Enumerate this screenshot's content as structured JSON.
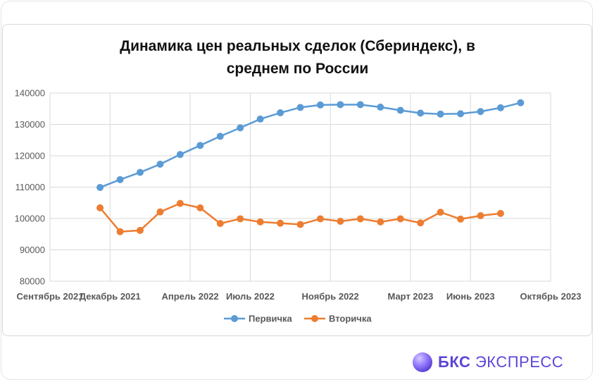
{
  "chart_data": {
    "type": "line",
    "title_line1": "Динамика цен реальных сделок (Сбериндекс), в",
    "title_line2": "среднем по России",
    "yticks": [
      80000,
      90000,
      100000,
      110000,
      120000,
      130000,
      140000
    ],
    "ylim": [
      80000,
      140000
    ],
    "xticks": [
      "Сентябрь 2021",
      "Декабрь 2021",
      "Апрель 2022",
      "Июль 2022",
      "Ноябрь 2022",
      "Март 2023",
      "Июнь 2023",
      "Октябрь 2023"
    ],
    "x": [
      "2021-11",
      "2021-12",
      "2022-01",
      "2022-02",
      "2022-03",
      "2022-04",
      "2022-05",
      "2022-06",
      "2022-07",
      "2022-08",
      "2022-09",
      "2022-10",
      "2022-11",
      "2022-12",
      "2023-01",
      "2023-02",
      "2023-03",
      "2023-04",
      "2023-05",
      "2023-06",
      "2023-07",
      "2023-08"
    ],
    "series": [
      {
        "name": "Первичка",
        "color": "#5b9bd5",
        "values": [
          109900,
          112400,
          114700,
          117300,
          120400,
          123300,
          126200,
          128900,
          131700,
          133700,
          135400,
          136200,
          136300,
          136300,
          135500,
          134500,
          133600,
          133300,
          133400,
          134100,
          135300,
          136900
        ]
      },
      {
        "name": "Вторичка",
        "color": "#ed7d31",
        "values": [
          103400,
          95800,
          96200,
          102100,
          104800,
          103400,
          98400,
          99900,
          98900,
          98500,
          98100,
          99900,
          99100,
          99900,
          98900,
          99900,
          98600,
          102000,
          99800,
          100900,
          101600,
          null
        ]
      }
    ],
    "grid": true,
    "legend_position": "bottom"
  },
  "brand": {
    "bold": "БКС",
    "rest": " ЭКСПРЕСС"
  }
}
